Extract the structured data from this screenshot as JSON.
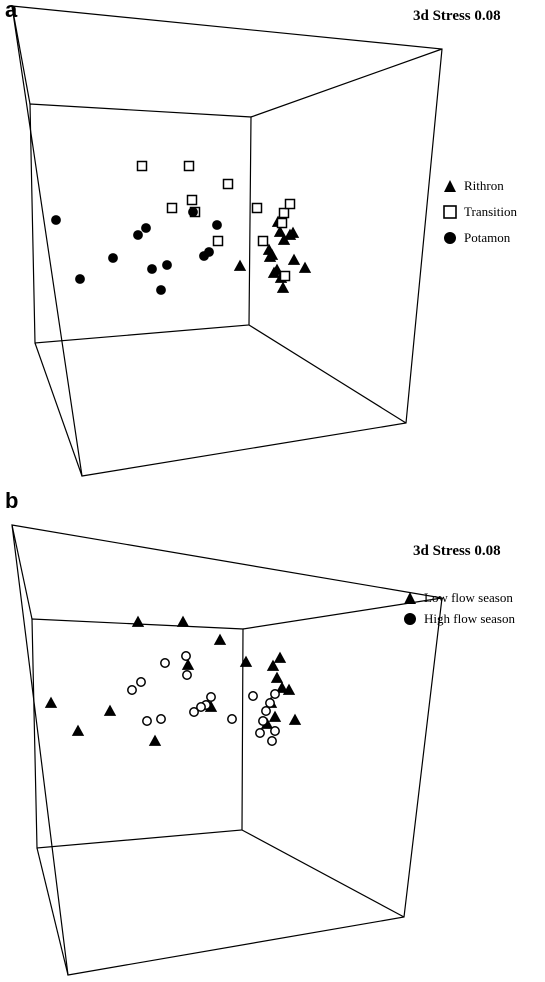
{
  "panels": [
    {
      "id": "a",
      "letter": "a",
      "stress_label": "3d Stress 0.08",
      "legend": [
        {
          "label": "Rithron",
          "marker": "filled-triangle"
        },
        {
          "label": "Transition",
          "marker": "open-square"
        },
        {
          "label": "Potamon",
          "marker": "filled-circle"
        }
      ]
    },
    {
      "id": "b",
      "letter": "b",
      "stress_label": "3d Stress 0.08",
      "legend": [
        {
          "label": "Low flow season",
          "marker": "filled-triangle"
        },
        {
          "label": "High flow season",
          "marker": "open-circle"
        }
      ]
    }
  ],
  "chart_data": [
    {
      "type": "scatter",
      "panel": "a",
      "subtype": "3d-nmds",
      "stress": 0.08,
      "xlabel": "",
      "ylabel": "",
      "grid": false,
      "legend_position": "right",
      "series": [
        {
          "name": "Rithron",
          "marker": "triangle",
          "filled": true,
          "x": [
            240,
            278,
            280,
            284,
            290,
            293,
            294,
            270,
            274,
            277,
            281,
            305,
            269,
            272,
            283
          ],
          "y": [
            266,
            222,
            232,
            240,
            235,
            233,
            260,
            257,
            273,
            270,
            278,
            268,
            250,
            255,
            288
          ]
        },
        {
          "name": "Transition",
          "marker": "square",
          "filled": false,
          "x": [
            142,
            189,
            228,
            172,
            192,
            218,
            257,
            284,
            282,
            290,
            263,
            285,
            195
          ],
          "y": [
            166,
            166,
            184,
            208,
            200,
            241,
            208,
            213,
            223,
            204,
            241,
            276,
            212
          ]
        },
        {
          "name": "Potamon",
          "marker": "circle",
          "filled": true,
          "x": [
            56,
            138,
            146,
            193,
            217,
            209,
            204,
            167,
            152,
            113,
            80,
            161
          ],
          "y": [
            220,
            235,
            228,
            212,
            225,
            252,
            256,
            265,
            269,
            258,
            279,
            290
          ]
        }
      ]
    },
    {
      "type": "scatter",
      "panel": "b",
      "subtype": "3d-nmds",
      "stress": 0.08,
      "xlabel": "",
      "ylabel": "",
      "grid": false,
      "legend_position": "right",
      "series": [
        {
          "name": "Low flow season",
          "marker": "triangle",
          "filled": true,
          "x": [
            138,
            183,
            220,
            51,
            188,
            211,
            110,
            78,
            155,
            246,
            280,
            273,
            277,
            282,
            289,
            271,
            275,
            295,
            267
          ],
          "y": [
            622,
            622,
            640,
            703,
            665,
            707,
            711,
            731,
            741,
            662,
            658,
            666,
            678,
            688,
            690,
            703,
            717,
            720,
            724
          ]
        },
        {
          "name": "High flow season",
          "marker": "circle",
          "filled": false,
          "x": [
            186,
            165,
            187,
            141,
            132,
            211,
            206,
            201,
            194,
            161,
            147,
            232,
            253,
            275,
            270,
            266,
            263,
            260,
            275,
            272
          ],
          "y": [
            656,
            663,
            675,
            682,
            690,
            697,
            705,
            707,
            712,
            719,
            721,
            719,
            696,
            694,
            703,
            711,
            721,
            733,
            731,
            741
          ]
        }
      ]
    }
  ]
}
